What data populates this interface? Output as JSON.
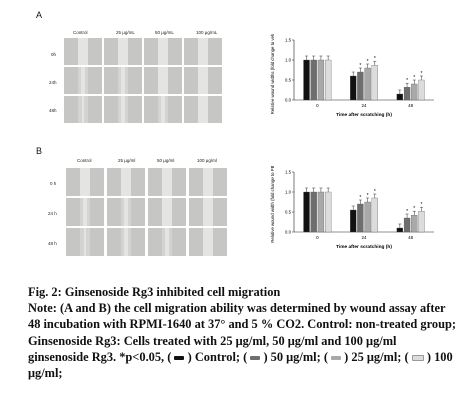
{
  "figure": {
    "panels": [
      {
        "id": "A",
        "letter": "A",
        "columns": [
          "Control",
          "25 μg/mL",
          "50 μg/mL",
          "100 μg/mL"
        ],
        "rows": [
          "0h",
          "24h",
          "48h"
        ],
        "chart_data": {
          "type": "bar",
          "categories": [
            "0",
            "24",
            "48"
          ],
          "series": [
            {
              "name": "Control",
              "values": [
                1.0,
                0.6,
                0.15
              ]
            },
            {
              "name": "50 μg/ml",
              "values": [
                1.0,
                0.7,
                0.32
              ]
            },
            {
              "name": "25 μg/ml",
              "values": [
                1.0,
                0.8,
                0.4
              ]
            },
            {
              "name": "100 μg/ml",
              "values": [
                1.0,
                0.87,
                0.5
              ]
            }
          ],
          "significance": [
            [
              false,
              false,
              false
            ],
            [
              false,
              true,
              true
            ],
            [
              false,
              true,
              true
            ],
            [
              false,
              true,
              true
            ]
          ],
          "xlabel": "Time after scratching (h)",
          "ylabel": "Relative wound widths (fold change to vehicle)",
          "ylim": [
            0,
            1.5
          ],
          "yticks": [
            "0.0",
            "0.5",
            "1.0",
            "1.5"
          ],
          "series_colors": [
            "#111111",
            "#6e6e6e",
            "#a9a9a9",
            "#dcdcdc"
          ]
        }
      },
      {
        "id": "B",
        "letter": "B",
        "columns": [
          "Control",
          "25 μg/ml",
          "50 μg/ml",
          "100 μg/ml"
        ],
        "rows": [
          "0 h",
          "24 h",
          "48 h"
        ],
        "chart_data": {
          "type": "bar",
          "categories": [
            "0",
            "24",
            "48"
          ],
          "series": [
            {
              "name": "Control",
              "values": [
                1.0,
                0.55,
                0.1
              ]
            },
            {
              "name": "50 μg/ml",
              "values": [
                1.0,
                0.7,
                0.35
              ]
            },
            {
              "name": "25 μg/ml",
              "values": [
                1.0,
                0.75,
                0.42
              ]
            },
            {
              "name": "100 μg/ml",
              "values": [
                1.0,
                0.85,
                0.52
              ]
            }
          ],
          "significance": [
            [
              false,
              false,
              false
            ],
            [
              false,
              true,
              true
            ],
            [
              false,
              true,
              true
            ],
            [
              false,
              true,
              true
            ]
          ],
          "xlabel": "Time after scratching (h)",
          "ylabel": "Relative wound width (fold change to PBS)",
          "ylim": [
            0,
            1.5
          ],
          "yticks": [
            "0.0",
            "0.5",
            "1.0",
            "1.5"
          ],
          "series_colors": [
            "#111111",
            "#6e6e6e",
            "#a9a9a9",
            "#dcdcdc"
          ]
        }
      }
    ]
  },
  "caption": {
    "title": "Fig. 2: Ginsenoside Rg3 inhibited cell migration",
    "note": "Note: (A and B) the cell migration ability was determined by wound assay after 48 incubation with RPMI-1640 at 37° and 5 % CO2. Control: non-treated group; Ginsenoside Rg3: Cells treated with 25 μg/ml, 50 μg/ml and 100 μg/ml ginsenoside Rg3. *p<0.05,",
    "legend": [
      {
        "label": "Control;",
        "color": "#111111"
      },
      {
        "label": "50 μg/ml;",
        "color": "#6e6e6e"
      },
      {
        "label": "25 μg/ml;",
        "color": "#a9a9a9"
      },
      {
        "label": "100 μg/ml;",
        "color": "#dcdcdc"
      }
    ]
  }
}
